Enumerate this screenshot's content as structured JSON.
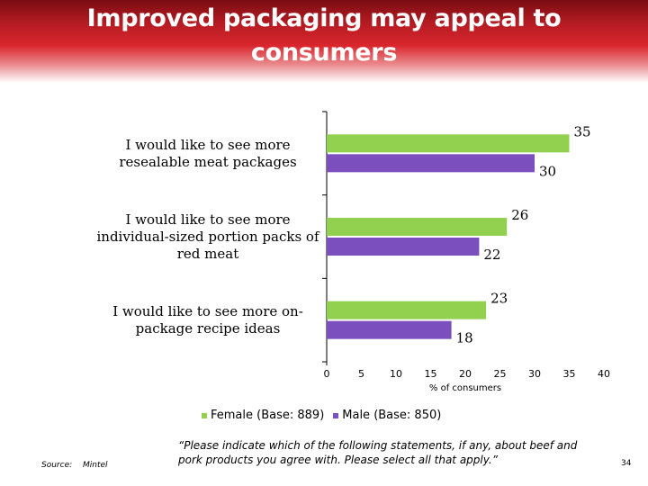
{
  "slide": {
    "title": "Improved packaging may appeal to\nconsumers",
    "source_label": "Source:",
    "source_value": "Mintel",
    "question": "“Please indicate which of the following statements, if any, about beef and pork products you agree with. Please select all that apply.”",
    "page_number": "34"
  },
  "chart_data": {
    "type": "bar",
    "orientation": "horizontal",
    "categories": [
      "I would like to see more\nresealable meat packages",
      "I would like to see more\nindividual-sized portion packs of\nred meat",
      "I would like to see more on-\npackage recipe ideas"
    ],
    "series": [
      {
        "name": "Female (Base: 889)",
        "values": [
          35,
          26,
          23
        ],
        "color": "#92d050"
      },
      {
        "name": "Male (Base: 850)",
        "values": [
          30,
          22,
          18
        ],
        "color": "#7b4fbd"
      }
    ],
    "xlabel": "% of consumers",
    "xlim": [
      0,
      40
    ],
    "xticks": [
      "0",
      "5",
      "10",
      "15",
      "20",
      "25",
      "30",
      "35",
      "40"
    ],
    "legend_position": "bottom",
    "grid": false
  }
}
